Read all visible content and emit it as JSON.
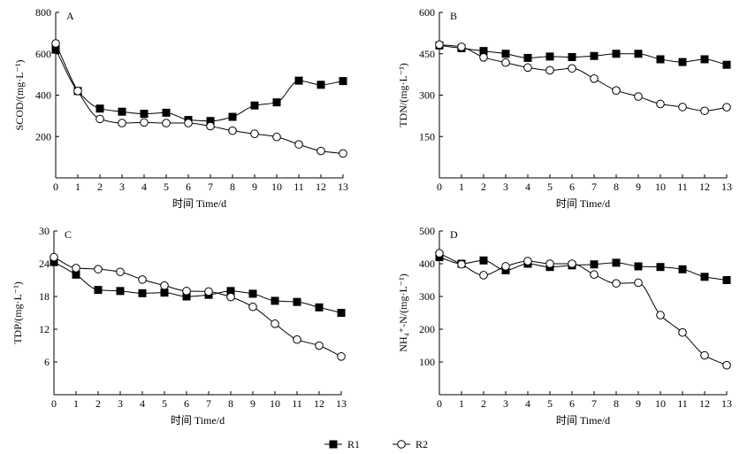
{
  "chart_data": [
    {
      "type": "line",
      "panel_label": "A",
      "ylabel": "SCOD/(mg·L⁻¹)",
      "xlabel": "时间 Time/d",
      "xlim": [
        0,
        13
      ],
      "ylim": [
        0,
        800
      ],
      "x_ticks": [
        0,
        1,
        2,
        3,
        4,
        5,
        6,
        7,
        8,
        9,
        10,
        11,
        12,
        13
      ],
      "y_ticks": [
        200,
        400,
        600,
        800
      ],
      "series": [
        {
          "name": "R1",
          "marker": "filled-square",
          "x": [
            0,
            1,
            2,
            3,
            4,
            5,
            6,
            7,
            8,
            9,
            10,
            11,
            12,
            13
          ],
          "values": [
            620,
            420,
            335,
            320,
            310,
            315,
            280,
            275,
            295,
            350,
            365,
            470,
            450,
            468
          ]
        },
        {
          "name": "R2",
          "marker": "open-circle",
          "x": [
            0,
            1,
            2,
            3,
            4,
            5,
            6,
            7,
            8,
            9,
            10,
            11,
            12,
            13
          ],
          "values": [
            650,
            420,
            285,
            265,
            268,
            265,
            265,
            250,
            228,
            213,
            198,
            162,
            130,
            118
          ]
        }
      ]
    },
    {
      "type": "line",
      "panel_label": "B",
      "ylabel": "TDN/(mg·L⁻¹)",
      "xlabel": "时间 Time/d",
      "xlim": [
        0,
        13
      ],
      "ylim": [
        0,
        600
      ],
      "x_ticks": [
        0,
        1,
        2,
        3,
        4,
        5,
        6,
        7,
        8,
        9,
        10,
        11,
        12,
        13
      ],
      "y_ticks": [
        150,
        300,
        450,
        600
      ],
      "series": [
        {
          "name": "R1",
          "marker": "filled-square",
          "x": [
            0,
            1,
            2,
            3,
            4,
            5,
            6,
            7,
            8,
            9,
            10,
            11,
            12,
            13
          ],
          "values": [
            480,
            470,
            460,
            450,
            435,
            440,
            438,
            442,
            450,
            450,
            430,
            420,
            430,
            410
          ]
        },
        {
          "name": "R2",
          "marker": "open-circle",
          "x": [
            0,
            1,
            2,
            3,
            4,
            5,
            6,
            7,
            8,
            9,
            10,
            11,
            12,
            13
          ],
          "values": [
            483,
            475,
            437,
            418,
            400,
            390,
            397,
            360,
            317,
            295,
            268,
            257,
            243,
            256
          ]
        }
      ]
    },
    {
      "type": "line",
      "panel_label": "C",
      "ylabel": "TDP/(mg·L⁻¹)",
      "xlabel": "时间 Time/d",
      "xlim": [
        0,
        13
      ],
      "ylim": [
        0,
        30
      ],
      "x_ticks": [
        0,
        1,
        2,
        3,
        4,
        5,
        6,
        7,
        8,
        9,
        10,
        11,
        12,
        13
      ],
      "y_ticks": [
        6,
        12,
        18,
        24,
        30
      ],
      "series": [
        {
          "name": "R1",
          "marker": "filled-square",
          "x": [
            0,
            1,
            2,
            3,
            4,
            5,
            6,
            7,
            8,
            9,
            10,
            11,
            12,
            13
          ],
          "values": [
            24.3,
            22.0,
            19.2,
            19.0,
            18.6,
            18.7,
            18.0,
            18.3,
            19.0,
            18.5,
            17.2,
            17.0,
            16.0,
            15.0
          ]
        },
        {
          "name": "R2",
          "marker": "open-circle",
          "x": [
            0,
            1,
            2,
            3,
            4,
            5,
            6,
            7,
            8,
            9,
            10,
            11,
            12,
            13
          ],
          "values": [
            25.2,
            23.2,
            23.0,
            22.5,
            21.1,
            20.0,
            19.0,
            18.9,
            17.9,
            16.1,
            13.0,
            10.1,
            9.0,
            7.0
          ]
        }
      ]
    },
    {
      "type": "line",
      "panel_label": "D",
      "ylabel": "NH₄⁺-N/(mg·L⁻¹)",
      "xlabel": "时间 Time/d",
      "xlim": [
        0,
        13
      ],
      "ylim": [
        0,
        500
      ],
      "x_ticks": [
        0,
        1,
        2,
        3,
        4,
        5,
        6,
        7,
        8,
        9,
        10,
        11,
        12,
        13
      ],
      "y_ticks": [
        100,
        200,
        300,
        400,
        500
      ],
      "series": [
        {
          "name": "R1",
          "marker": "filled-square",
          "x": [
            0,
            1,
            2,
            3,
            4,
            5,
            6,
            7,
            8,
            9,
            10,
            11,
            12,
            13
          ],
          "values": [
            420,
            400,
            410,
            380,
            400,
            390,
            395,
            398,
            403,
            392,
            390,
            383,
            360,
            350
          ]
        },
        {
          "name": "R2",
          "marker": "open-circle",
          "x": [
            0,
            1,
            2,
            3,
            4,
            5,
            6,
            7,
            8,
            9,
            10,
            11,
            12,
            13
          ],
          "values": [
            432,
            398,
            365,
            392,
            408,
            400,
            400,
            367,
            340,
            342,
            243,
            190,
            120,
            90
          ]
        }
      ]
    }
  ],
  "legend": [
    {
      "name": "R1",
      "marker": "filled-square"
    },
    {
      "name": "R2",
      "marker": "open-circle"
    }
  ],
  "legend_placement": "bottom-center"
}
